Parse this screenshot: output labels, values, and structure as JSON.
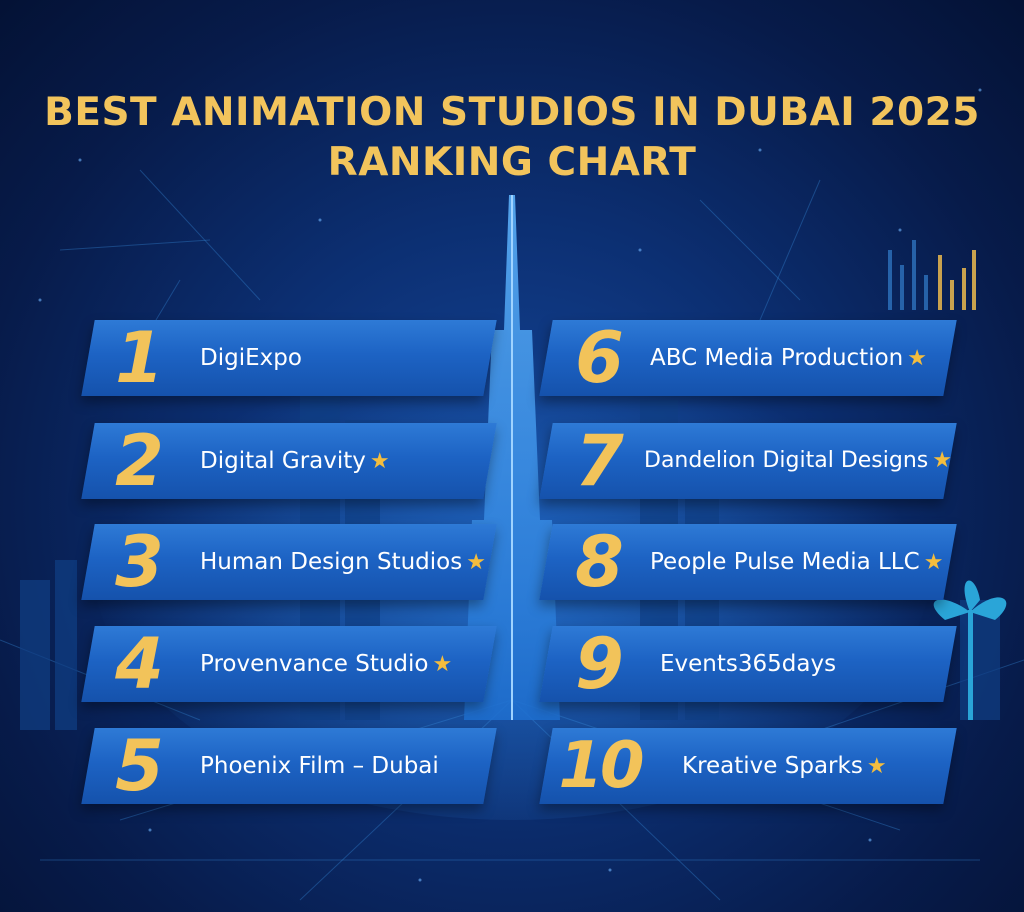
{
  "title": {
    "line1": "BEST ANIMATION STUDIOS IN DUBAI 2025",
    "line2": "RANKING CHART"
  },
  "colors": {
    "background": "#0c2f72",
    "banner": "#1d63c4",
    "rank_gold": "#f2c35a",
    "title_gold": "#f2c45c",
    "star": "#f4bd3e"
  },
  "left_column": [
    {
      "rank": "1",
      "name": "DigiExpo",
      "star": ""
    },
    {
      "rank": "2",
      "name": "Digital Gravity",
      "star": "★"
    },
    {
      "rank": "3",
      "name": "Human Design Studios",
      "star": "★"
    },
    {
      "rank": "4",
      "name": "Provenvance Studio",
      "star": "★"
    },
    {
      "rank": "5",
      "name": "Phoenix Film – Dubai",
      "star": ""
    }
  ],
  "right_column": [
    {
      "rank": "6",
      "name": "ABC Media Production",
      "star": "★"
    },
    {
      "rank": "7",
      "name": "Dandelion Digital Designs",
      "star": "★"
    },
    {
      "rank": "8",
      "name": "People Pulse Media LLC",
      "star": "★"
    },
    {
      "rank": "9",
      "name": "Events365days",
      "star": ""
    },
    {
      "rank": "10",
      "name": "Kreative Sparks",
      "star": "★"
    }
  ]
}
